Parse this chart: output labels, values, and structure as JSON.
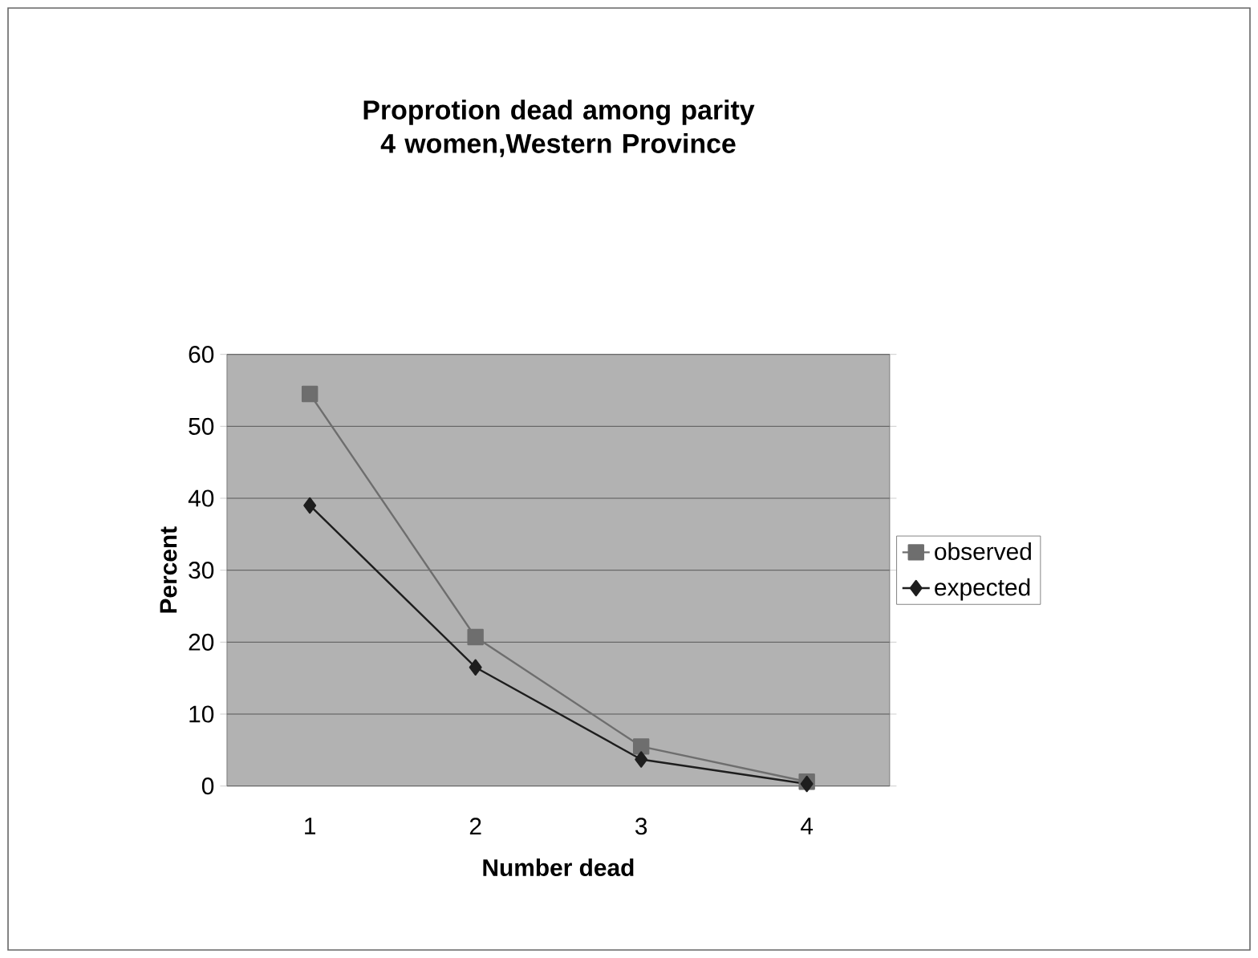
{
  "chart_data": {
    "type": "line",
    "title": "Proprotion dead among parity 4 women,Western Province",
    "xlabel": "Number dead",
    "ylabel": "Percent",
    "categories": [
      "1",
      "2",
      "3",
      "4"
    ],
    "series": [
      {
        "name": "observed",
        "color": "#6e6e6e",
        "marker": "square",
        "values": [
          54.5,
          20.7,
          5.5,
          0.6
        ]
      },
      {
        "name": "expected",
        "color": "#1e1e1e",
        "marker": "diamond",
        "values": [
          39,
          16.5,
          3.7,
          0.3
        ]
      }
    ],
    "ylim": [
      0,
      60
    ],
    "yticks": [
      0,
      10,
      20,
      30,
      40,
      50,
      60
    ],
    "grid": "y",
    "legend": "right",
    "line_style": "solid"
  }
}
